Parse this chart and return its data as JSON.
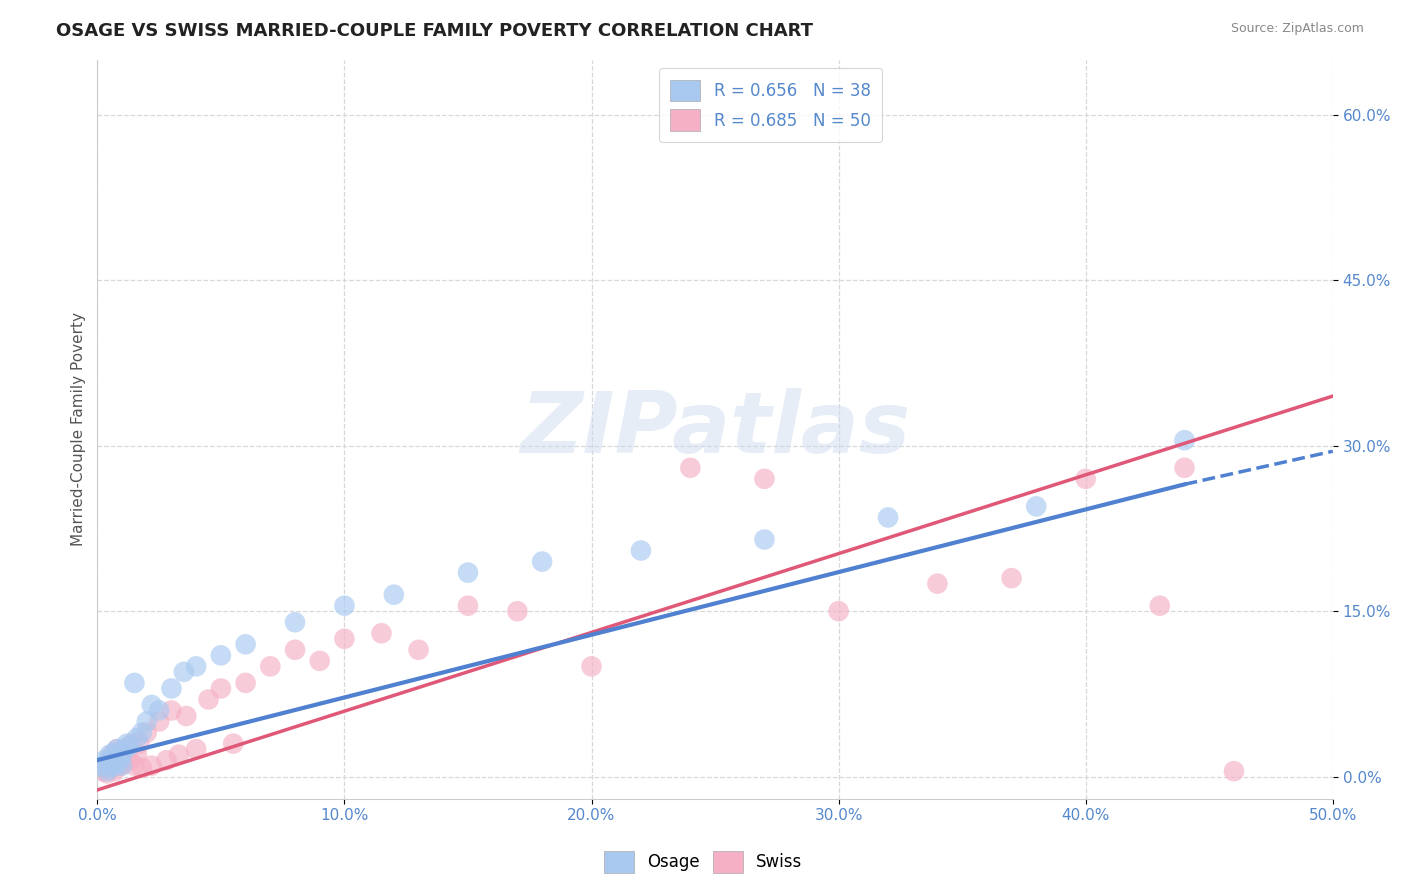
{
  "title": "OSAGE VS SWISS MARRIED-COUPLE FAMILY POVERTY CORRELATION CHART",
  "source": "Source: ZipAtlas.com",
  "xlabel_ticks": [
    "0.0%",
    "10.0%",
    "20.0%",
    "30.0%",
    "40.0%",
    "50.0%"
  ],
  "ylabel_ticks": [
    "0.0%",
    "15.0%",
    "30.0%",
    "45.0%",
    "60.0%"
  ],
  "xlim": [
    0.0,
    0.5
  ],
  "ylim": [
    -0.02,
    0.65
  ],
  "ylabel": "Married-Couple Family Poverty",
  "watermark": "ZIPatlas",
  "osage_color": "#a8c8f0",
  "swiss_color": "#f5b0c5",
  "osage_line_color": "#5080d0",
  "swiss_line_color": "#e05878",
  "background_color": "#ffffff",
  "grid_color": "#d8d8d8",
  "tick_color": "#5588cc",
  "osage_line_x0": 0.0,
  "osage_line_y0": 0.015,
  "osage_line_x1": 0.44,
  "osage_line_y1": 0.265,
  "osage_line_dash_x1": 0.5,
  "osage_line_dash_y1": 0.295,
  "swiss_line_x0": 0.0,
  "swiss_line_y0": -0.012,
  "swiss_line_x1": 0.5,
  "swiss_line_y1": 0.345,
  "osage_x": [
    0.002,
    0.003,
    0.004,
    0.005,
    0.005,
    0.006,
    0.006,
    0.007,
    0.007,
    0.008,
    0.008,
    0.009,
    0.01,
    0.01,
    0.011,
    0.012,
    0.013,
    0.015,
    0.016,
    0.018,
    0.02,
    0.022,
    0.025,
    0.03,
    0.035,
    0.04,
    0.05,
    0.06,
    0.08,
    0.1,
    0.12,
    0.15,
    0.18,
    0.22,
    0.27,
    0.32,
    0.38,
    0.44
  ],
  "osage_y": [
    0.01,
    0.015,
    0.005,
    0.02,
    0.008,
    0.012,
    0.018,
    0.01,
    0.022,
    0.012,
    0.025,
    0.015,
    0.01,
    0.02,
    0.025,
    0.03,
    0.028,
    0.085,
    0.035,
    0.04,
    0.05,
    0.065,
    0.06,
    0.08,
    0.095,
    0.1,
    0.11,
    0.12,
    0.14,
    0.155,
    0.165,
    0.185,
    0.195,
    0.205,
    0.215,
    0.235,
    0.245,
    0.305
  ],
  "swiss_x": [
    0.002,
    0.003,
    0.004,
    0.005,
    0.005,
    0.006,
    0.006,
    0.007,
    0.008,
    0.008,
    0.009,
    0.01,
    0.011,
    0.012,
    0.013,
    0.014,
    0.015,
    0.016,
    0.017,
    0.018,
    0.02,
    0.022,
    0.025,
    0.028,
    0.03,
    0.033,
    0.036,
    0.04,
    0.045,
    0.05,
    0.055,
    0.06,
    0.07,
    0.08,
    0.09,
    0.1,
    0.115,
    0.13,
    0.15,
    0.17,
    0.2,
    0.24,
    0.27,
    0.3,
    0.34,
    0.37,
    0.4,
    0.43,
    0.44,
    0.46
  ],
  "swiss_y": [
    0.005,
    0.008,
    0.003,
    0.01,
    0.015,
    0.008,
    0.02,
    0.005,
    0.015,
    0.025,
    0.01,
    0.02,
    0.012,
    0.025,
    0.015,
    0.03,
    0.01,
    0.02,
    0.03,
    0.008,
    0.04,
    0.01,
    0.05,
    0.015,
    0.06,
    0.02,
    0.055,
    0.025,
    0.07,
    0.08,
    0.03,
    0.085,
    0.1,
    0.115,
    0.105,
    0.125,
    0.13,
    0.115,
    0.155,
    0.15,
    0.1,
    0.28,
    0.27,
    0.15,
    0.175,
    0.18,
    0.27,
    0.155,
    0.28,
    0.005
  ]
}
